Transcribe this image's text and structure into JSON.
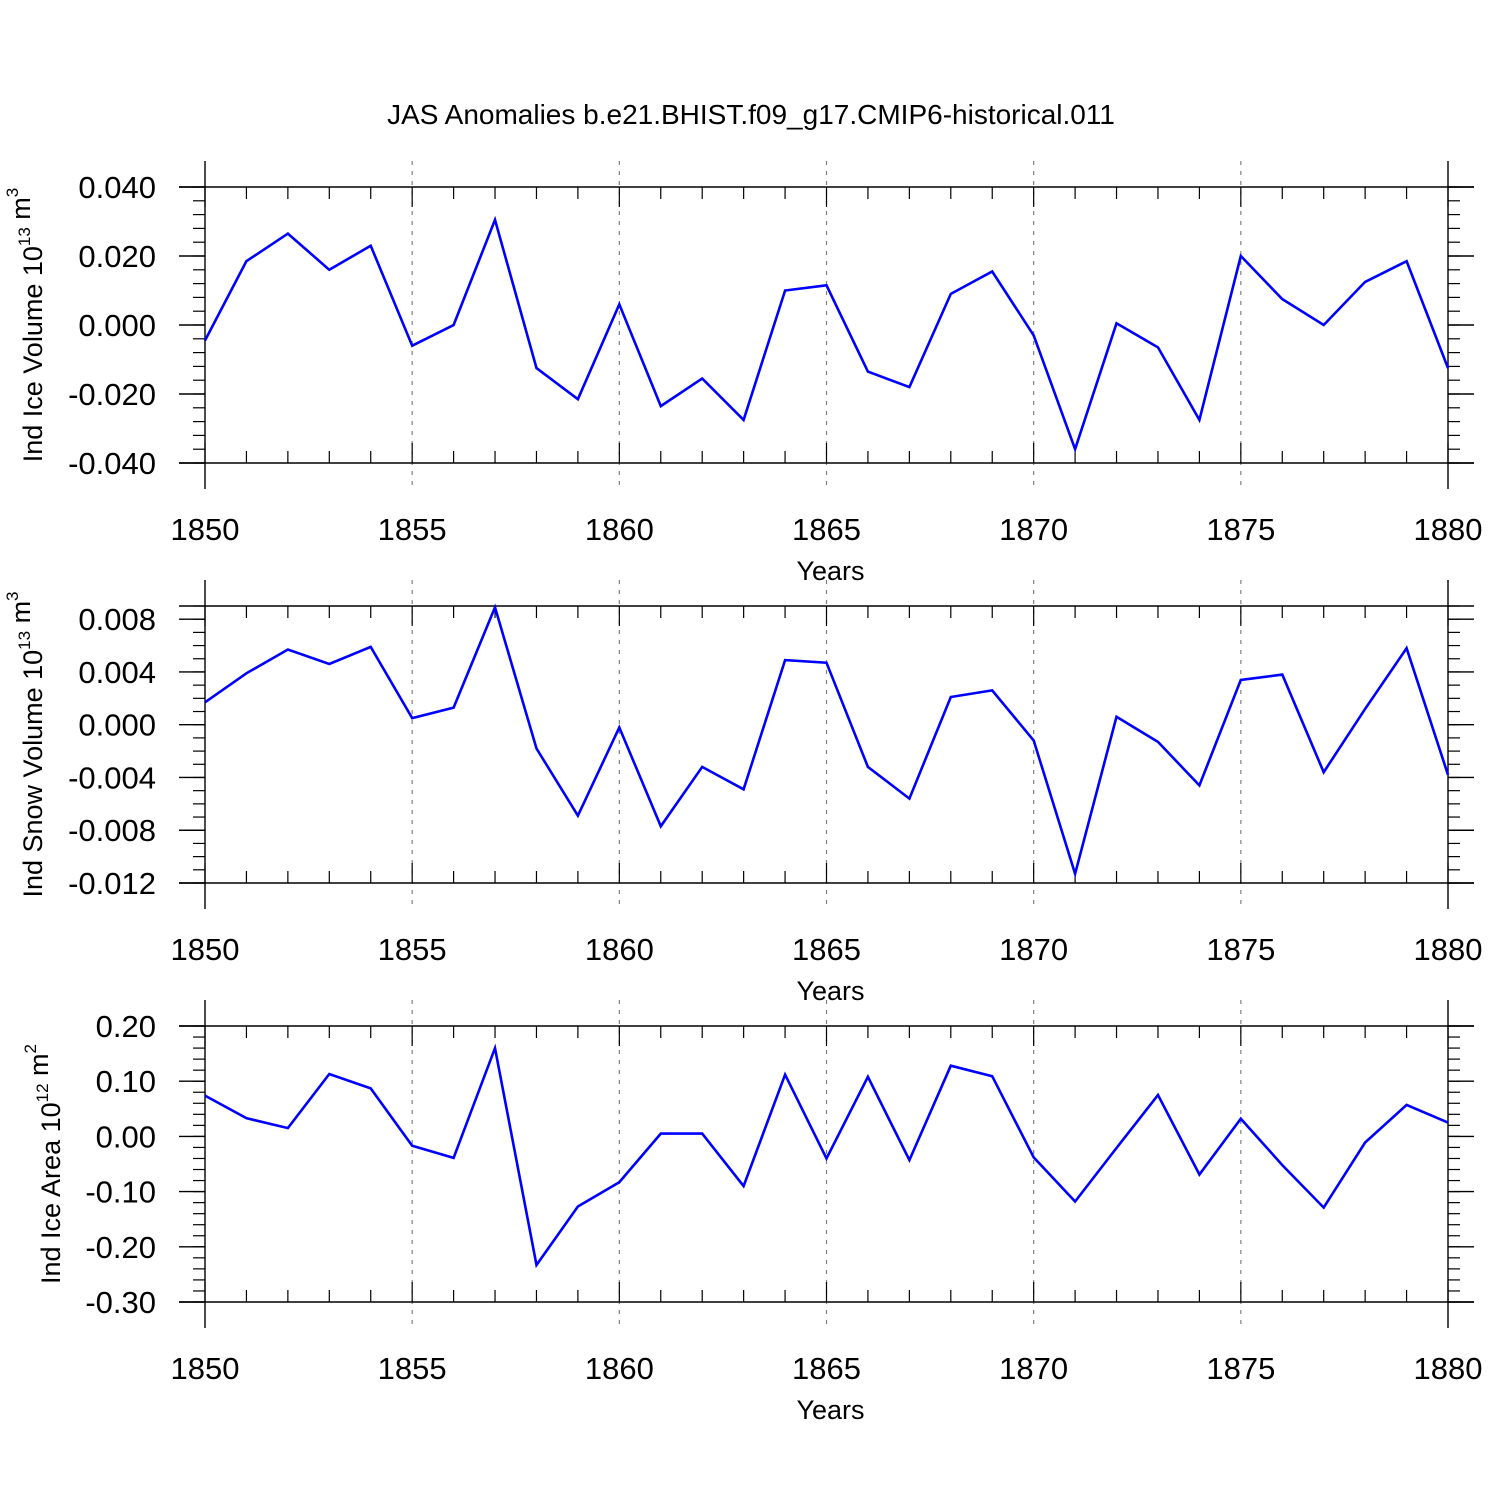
{
  "title": "JAS Anomalies b.e21.BHIST.f09_g17.CMIP6-historical.011",
  "line_color": "#0000ff",
  "chart_data": [
    {
      "type": "line",
      "xlabel": "Years",
      "ylabel": {
        "main": "Ind Ice Volume 10",
        "exp": "13",
        "unit": " m",
        "unit_exp": "3"
      },
      "xlim": [
        1850,
        1880
      ],
      "ylim": [
        -0.04,
        0.04
      ],
      "x_major_ticks": [
        "1850",
        "1855",
        "1860",
        "1865",
        "1870",
        "1875",
        "1880"
      ],
      "y_major_ticks": [
        "0.040",
        "0.020",
        "0.000",
        "-0.020",
        "-0.040"
      ],
      "y_major_values": [
        0.04,
        0.02,
        0.0,
        -0.02,
        -0.04
      ],
      "y_minor_step": 0.004,
      "series": [
        {
          "x": [
            1850,
            1851,
            1852,
            1853,
            1854,
            1855,
            1856,
            1857,
            1858,
            1859,
            1860,
            1861,
            1862,
            1863,
            1864,
            1865,
            1866,
            1867,
            1868,
            1869,
            1870,
            1871,
            1872,
            1873,
            1874,
            1875,
            1876,
            1877,
            1878,
            1879,
            1880
          ],
          "values": [
            -0.0045,
            0.0185,
            0.0265,
            0.016,
            0.023,
            -0.006,
            0.0,
            0.0305,
            -0.0125,
            -0.0215,
            0.006,
            -0.0235,
            -0.0155,
            -0.0275,
            0.01,
            0.0115,
            -0.0135,
            -0.018,
            0.009,
            0.0155,
            -0.003,
            -0.036,
            0.0005,
            -0.0065,
            -0.0275,
            0.02,
            0.0075,
            0.0,
            0.0125,
            0.0185,
            -0.0125
          ]
        }
      ]
    },
    {
      "type": "line",
      "xlabel": "Years",
      "ylabel": {
        "main": "Ind Snow Volume 10",
        "exp": "13",
        "unit": " m",
        "unit_exp": "3"
      },
      "xlim": [
        1850,
        1880
      ],
      "ylim": [
        -0.012,
        0.009
      ],
      "x_major_ticks": [
        "1850",
        "1855",
        "1860",
        "1865",
        "1870",
        "1875",
        "1880"
      ],
      "y_major_ticks": [
        "0.008",
        "0.004",
        "0.000",
        "-0.004",
        "-0.008",
        "-0.012"
      ],
      "y_major_values": [
        0.008,
        0.004,
        0.0,
        -0.004,
        -0.008,
        -0.012
      ],
      "y_minor_step": 0.001,
      "series": [
        {
          "x": [
            1850,
            1851,
            1852,
            1853,
            1854,
            1855,
            1856,
            1857,
            1858,
            1859,
            1860,
            1861,
            1862,
            1863,
            1864,
            1865,
            1866,
            1867,
            1868,
            1869,
            1870,
            1871,
            1872,
            1873,
            1874,
            1875,
            1876,
            1877,
            1878,
            1879,
            1880
          ],
          "values": [
            0.0017,
            0.0039,
            0.0057,
            0.0046,
            0.0059,
            0.0005,
            0.0013,
            0.0089,
            -0.0018,
            -0.0069,
            -0.0002,
            -0.0077,
            -0.0032,
            -0.0049,
            0.0049,
            0.0047,
            -0.0032,
            -0.0056,
            0.0021,
            0.0026,
            -0.0012,
            -0.0113,
            0.0006,
            -0.0013,
            -0.0046,
            0.0034,
            0.0038,
            -0.0036,
            0.0012,
            0.0058,
            -0.0038
          ]
        }
      ]
    },
    {
      "type": "line",
      "xlabel": "Years",
      "ylabel": {
        "main": "Ind Ice Area 10",
        "exp": "12",
        "unit": " m",
        "unit_exp": "2"
      },
      "xlim": [
        1850,
        1880
      ],
      "ylim": [
        -0.3,
        0.2
      ],
      "x_major_ticks": [
        "1850",
        "1855",
        "1860",
        "1865",
        "1870",
        "1875",
        "1880"
      ],
      "y_major_ticks": [
        "0.20",
        "0.10",
        "0.00",
        "-0.10",
        "-0.20",
        "-0.30"
      ],
      "y_major_values": [
        0.2,
        0.1,
        0.0,
        -0.1,
        -0.2,
        -0.3
      ],
      "y_minor_step": 0.02,
      "series": [
        {
          "x": [
            1850,
            1851,
            1852,
            1853,
            1854,
            1855,
            1856,
            1857,
            1858,
            1859,
            1860,
            1861,
            1862,
            1863,
            1864,
            1865,
            1866,
            1867,
            1868,
            1869,
            1870,
            1871,
            1872,
            1873,
            1874,
            1875,
            1876,
            1877,
            1878,
            1879,
            1880
          ],
          "values": [
            0.074,
            0.033,
            0.015,
            0.113,
            0.087,
            -0.017,
            -0.039,
            0.16,
            -0.233,
            -0.127,
            -0.083,
            0.005,
            0.005,
            -0.09,
            0.112,
            -0.04,
            0.108,
            -0.043,
            0.128,
            0.109,
            -0.038,
            -0.118,
            -0.021,
            0.075,
            -0.069,
            0.032,
            -0.052,
            -0.129,
            -0.011,
            0.057,
            0.025
          ]
        }
      ]
    }
  ]
}
